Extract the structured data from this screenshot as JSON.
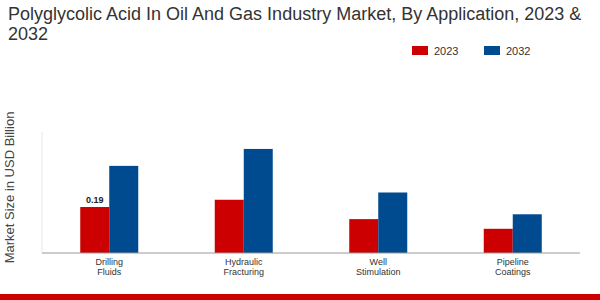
{
  "chart_data": {
    "type": "bar",
    "title": "Polyglycolic Acid In Oil And Gas Industry Market, By Application, 2023 & 2032",
    "y_label": "Market Size in USD Billion",
    "categories": [
      "Drilling Fluids",
      "Hydraulic Fracturing",
      "Well Stimulation",
      "Pipeline Coatings"
    ],
    "series": [
      {
        "name": "2023",
        "color": "#cc0000",
        "values": [
          0.19,
          0.22,
          0.14,
          0.1
        ],
        "value_labels": [
          "0.19",
          null,
          null,
          null
        ]
      },
      {
        "name": "2032",
        "color": "#004a8f",
        "values": [
          0.36,
          0.43,
          0.25,
          0.16
        ]
      }
    ],
    "ylim": [
      0,
      0.5
    ],
    "grid": false,
    "legend": "top-right",
    "tick_labels": "x"
  }
}
